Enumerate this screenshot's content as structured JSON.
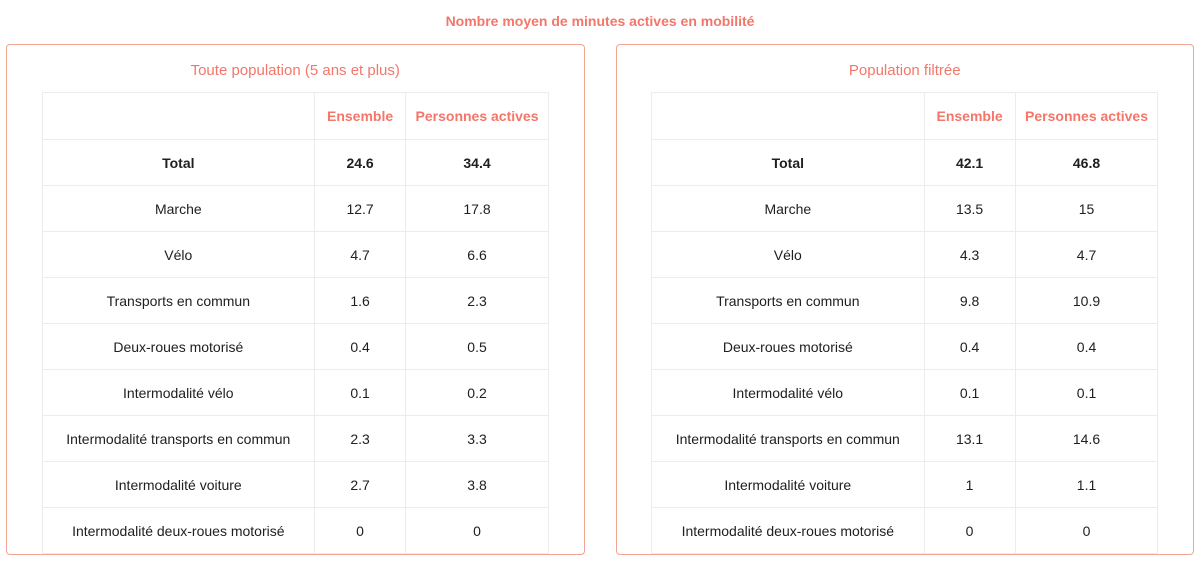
{
  "page_title": "Nombre moyen de minutes actives en mobilité",
  "colors": {
    "accent": "#f3766a",
    "panel_border": "#f0a492",
    "table_border": "#ececec",
    "text": "#202020"
  },
  "chart_data": [
    {
      "type": "table",
      "title": "Toute population (5 ans et plus)",
      "columns": [
        "",
        "Ensemble",
        "Personnes actives"
      ],
      "rows": [
        [
          "Total",
          "24.6",
          "34.4"
        ],
        [
          "Marche",
          "12.7",
          "17.8"
        ],
        [
          "Vélo",
          "4.7",
          "6.6"
        ],
        [
          "Transports en commun",
          "1.6",
          "2.3"
        ],
        [
          "Deux-roues motorisé",
          "0.4",
          "0.5"
        ],
        [
          "Intermodalité vélo",
          "0.1",
          "0.2"
        ],
        [
          "Intermodalité transports en commun",
          "2.3",
          "3.3"
        ],
        [
          "Intermodalité voiture",
          "2.7",
          "3.8"
        ],
        [
          "Intermodalité deux-roues motorisé",
          "0",
          "0"
        ]
      ]
    },
    {
      "type": "table",
      "title": "Population filtrée",
      "columns": [
        "",
        "Ensemble",
        "Personnes actives"
      ],
      "rows": [
        [
          "Total",
          "42.1",
          "46.8"
        ],
        [
          "Marche",
          "13.5",
          "15"
        ],
        [
          "Vélo",
          "4.3",
          "4.7"
        ],
        [
          "Transports en commun",
          "9.8",
          "10.9"
        ],
        [
          "Deux-roues motorisé",
          "0.4",
          "0.4"
        ],
        [
          "Intermodalité vélo",
          "0.1",
          "0.1"
        ],
        [
          "Intermodalité transports en commun",
          "13.1",
          "14.6"
        ],
        [
          "Intermodalité voiture",
          "1",
          "1.1"
        ],
        [
          "Intermodalité deux-roues motorisé",
          "0",
          "0"
        ]
      ]
    }
  ]
}
